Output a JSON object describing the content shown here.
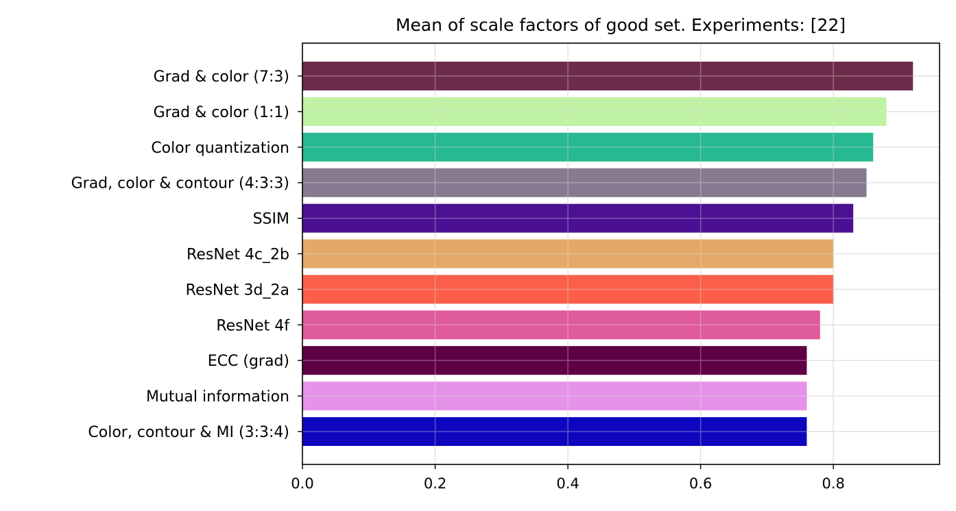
{
  "chart_data": {
    "type": "bar",
    "orientation": "horizontal",
    "title": "Mean of scale factors of good set. Experiments: [22]",
    "xlabel": "",
    "ylabel": "",
    "xlim": [
      0,
      0.96
    ],
    "xticks": [
      "0.0",
      "0.2",
      "0.4",
      "0.6",
      "0.8"
    ],
    "grid": true,
    "categories": [
      "Grad & color (7:3)",
      "Grad & color (1:1)",
      "Color quantization",
      "Grad, color & contour (4:3:3)",
      "SSIM",
      "ResNet 4c_2b",
      "ResNet 3d_2a",
      "ResNet 4f",
      "ECC (grad)",
      "Mutual information",
      "Color, contour & MI (3:3:4)"
    ],
    "values": [
      0.92,
      0.88,
      0.86,
      0.85,
      0.83,
      0.8,
      0.8,
      0.78,
      0.76,
      0.76,
      0.76
    ],
    "colors": [
      "#6e2c4b",
      "#c0f2a6",
      "#27b991",
      "#877a90",
      "#4c1192",
      "#e4a968",
      "#fb5f49",
      "#df5b9b",
      "#5e0044",
      "#e593e8",
      "#0e06bf"
    ]
  }
}
